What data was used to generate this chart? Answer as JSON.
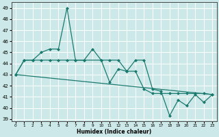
{
  "xlabel": "Humidex (Indice chaleur)",
  "bg_color": "#cce8e8",
  "grid_color": "#ffffff",
  "line_color": "#1a7a6e",
  "xlim": [
    -0.5,
    23.5
  ],
  "ylim": [
    38.8,
    49.5
  ],
  "yticks": [
    39,
    40,
    41,
    42,
    43,
    44,
    45,
    46,
    47,
    48,
    49
  ],
  "xticks": [
    0,
    1,
    2,
    3,
    4,
    5,
    6,
    7,
    8,
    9,
    10,
    11,
    12,
    13,
    14,
    15,
    16,
    17,
    18,
    19,
    20,
    21,
    22,
    23
  ],
  "line1_x": [
    0,
    1,
    2,
    3,
    4,
    5,
    6,
    7,
    8,
    10,
    11,
    12,
    13,
    14,
    15,
    16,
    17,
    18,
    19,
    20,
    21,
    22,
    23
  ],
  "line1_y": [
    43,
    44.3,
    44.3,
    45,
    45.3,
    45.3,
    49,
    44.3,
    44.3,
    44.3,
    42.3,
    43.5,
    43.3,
    44.3,
    44.3,
    41.7,
    41.5,
    39.3,
    40.7,
    40.2,
    41.2,
    40.5,
    41.2
  ],
  "line2_x": [
    0,
    1,
    2,
    3,
    4,
    5,
    6,
    7,
    8,
    9,
    10,
    11,
    12,
    13,
    14,
    15,
    16,
    17,
    18,
    19,
    20,
    21,
    22,
    23
  ],
  "line2_y": [
    43,
    44.3,
    44.3,
    44.3,
    44.3,
    44.3,
    44.3,
    44.3,
    44.3,
    45.3,
    44.3,
    44.3,
    44.3,
    43.3,
    43.3,
    41.7,
    41.3,
    41.3,
    41.3,
    41.3,
    41.3,
    41.3,
    41.3,
    41.2
  ],
  "line3_x": [
    0,
    23
  ],
  "line3_y": [
    43,
    41.2
  ]
}
